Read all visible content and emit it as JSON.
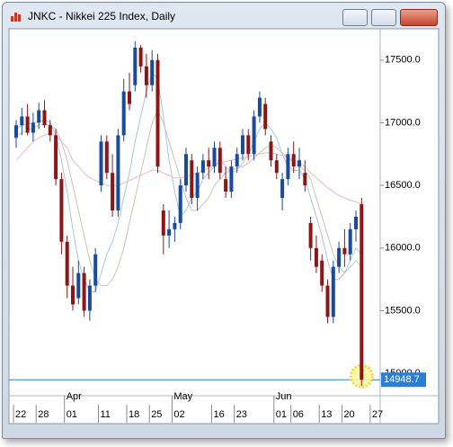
{
  "chart_data": {
    "type": "candlestick",
    "title": "JNKC - Nikkei 225 Index, Daily",
    "up_color": "#1a4a9c",
    "down_color": "#8c1616",
    "open": [
      16880,
      16980,
      17050,
      16920,
      17000,
      17100,
      16980,
      16900,
      16550,
      16050,
      15700,
      15600,
      15800,
      15500,
      15700,
      16500,
      16850,
      16600,
      16300,
      16900,
      17250,
      17300,
      17600,
      17450,
      17300,
      17500,
      16300,
      16100,
      16150,
      16200,
      16500,
      16700,
      16400,
      16600,
      16700,
      16650,
      16800,
      16550,
      16450,
      16650,
      16750,
      16900,
      16750,
      17050,
      17150,
      16850,
      16700,
      16400,
      16550,
      16750,
      16650,
      16600,
      16200,
      16000,
      15900,
      15700,
      15450,
      15850,
      16000,
      15950,
      16150,
      16350
    ],
    "high": [
      17020,
      17120,
      17150,
      17080,
      17160,
      17180,
      17020,
      16950,
      16600,
      16100,
      15850,
      15900,
      15850,
      15750,
      16000,
      16900,
      16900,
      16750,
      16950,
      17350,
      17400,
      17650,
      17620,
      17550,
      17580,
      17550,
      16350,
      16300,
      16250,
      16550,
      16800,
      16750,
      16650,
      16750,
      16800,
      16850,
      16850,
      16650,
      16700,
      16800,
      16950,
      16950,
      17100,
      17250,
      17200,
      16900,
      16750,
      16600,
      16800,
      16850,
      16800,
      16700,
      16250,
      16100,
      15950,
      15750,
      15900,
      16050,
      16150,
      16200,
      16300,
      16400
    ],
    "low": [
      16800,
      16900,
      16900,
      16850,
      16950,
      16960,
      16850,
      16500,
      15950,
      15600,
      15500,
      15550,
      15450,
      15420,
      15650,
      16450,
      16550,
      16250,
      16250,
      16850,
      17100,
      17250,
      17400,
      17200,
      17250,
      16600,
      15950,
      16000,
      16050,
      16150,
      16450,
      16350,
      16300,
      16550,
      16550,
      16600,
      16550,
      16400,
      16400,
      16600,
      16700,
      16700,
      16700,
      17000,
      16900,
      16650,
      16550,
      16300,
      16500,
      16600,
      16550,
      16450,
      15900,
      15800,
      15650,
      15400,
      15400,
      15800,
      15850,
      15900,
      16050,
      14900
    ],
    "close": [
      16980,
      17050,
      16920,
      17000,
      17100,
      16980,
      16900,
      16550,
      16050,
      15700,
      15550,
      15800,
      15500,
      15700,
      15950,
      16850,
      16600,
      16300,
      16900,
      17250,
      17150,
      17600,
      17450,
      17300,
      17500,
      16650,
      16100,
      16150,
      16200,
      16500,
      16750,
      16400,
      16600,
      16700,
      16650,
      16800,
      16600,
      16450,
      16650,
      16750,
      16900,
      16750,
      17050,
      17200,
      16950,
      16700,
      16600,
      16550,
      16750,
      16650,
      16700,
      16500,
      16000,
      15850,
      15700,
      15450,
      15850,
      16000,
      15950,
      16150,
      16250,
      14948.7
    ],
    "series": [
      {
        "color": "#a9c4e4",
        "values": [
          16950,
          16980,
          16990,
          17000,
          17010,
          17020,
          17000,
          16900,
          16700,
          16450,
          16150,
          15900,
          15750,
          15650,
          15650,
          15800,
          15950,
          16050,
          16200,
          16400,
          16600,
          16850,
          17050,
          17250,
          17400,
          17350,
          17050,
          16700,
          16450,
          16250,
          16300,
          16400,
          16450,
          16550,
          16600,
          16650,
          16700,
          16650,
          16600,
          16620,
          16680,
          16750,
          16850,
          16950,
          17000,
          16950,
          16880,
          16750,
          16650,
          16620,
          16620,
          16550,
          16400,
          16250,
          16100,
          15900,
          15750,
          15750,
          15800,
          15900,
          16000,
          15950
        ]
      },
      {
        "color": "#c9c4b4",
        "values": [
          16900,
          16920,
          16940,
          16960,
          16980,
          16990,
          16980,
          16950,
          16850,
          16700,
          16500,
          16300,
          16100,
          15900,
          15750,
          15700,
          15700,
          15750,
          15850,
          16000,
          16200,
          16400,
          16600,
          16800,
          17000,
          17100,
          17000,
          16850,
          16700,
          16550,
          16400,
          16300,
          16300,
          16350,
          16400,
          16500,
          16550,
          16600,
          16620,
          16640,
          16650,
          16680,
          16720,
          16760,
          16800,
          16820,
          16800,
          16760,
          16720,
          16680,
          16650,
          16620,
          16550,
          16400,
          16250,
          16100,
          15950,
          15850,
          15800,
          15850,
          15900,
          15850
        ]
      },
      {
        "color": "#eab8c8",
        "values": [
          16700,
          16750,
          16800,
          16850,
          16880,
          16900,
          16920,
          16900,
          16850,
          16800,
          16700,
          16650,
          16600,
          16560,
          16540,
          16520,
          16500,
          16500,
          16500,
          16520,
          16540,
          16560,
          16580,
          16600,
          16620,
          16620,
          16600,
          16580,
          16560,
          16560,
          16570,
          16580,
          16600,
          16620,
          16640,
          16660,
          16680,
          16690,
          16700,
          16710,
          16720,
          16730,
          16740,
          16750,
          16760,
          16760,
          16750,
          16740,
          16720,
          16700,
          16680,
          16650,
          16600,
          16560,
          16520,
          16480,
          16450,
          16420,
          16400,
          16380,
          16370,
          16350
        ]
      }
    ],
    "ylim": [
      14821,
      17750
    ],
    "yticks": [
      {
        "value": 17500,
        "label": "17500.0"
      },
      {
        "value": 17000,
        "label": "17000.0"
      },
      {
        "value": 16500,
        "label": "16500.0"
      },
      {
        "value": 16000,
        "label": "16000.0"
      },
      {
        "value": 15500,
        "label": "15500.0"
      },
      {
        "value": 15000,
        "label": "15000.0"
      }
    ],
    "xticks": [
      {
        "value": 0,
        "label": "22"
      },
      {
        "value": 4,
        "label": "28"
      },
      {
        "value": 9,
        "label": "01"
      },
      {
        "value": 15,
        "label": "11"
      },
      {
        "value": 20,
        "label": "18"
      },
      {
        "value": 24,
        "label": "25"
      },
      {
        "value": 28,
        "label": "02"
      },
      {
        "value": 35,
        "label": "16"
      },
      {
        "value": 39,
        "label": "23"
      },
      {
        "value": 46,
        "label": "01"
      },
      {
        "value": 49,
        "label": "06"
      },
      {
        "value": 54,
        "label": "13"
      },
      {
        "value": 58,
        "label": "20"
      },
      {
        "value": 63,
        "label": "27"
      }
    ],
    "months": [
      {
        "value": 9,
        "label": "Apr"
      },
      {
        "value": 28,
        "label": "May"
      },
      {
        "value": 46,
        "label": "Jun"
      }
    ]
  }
}
